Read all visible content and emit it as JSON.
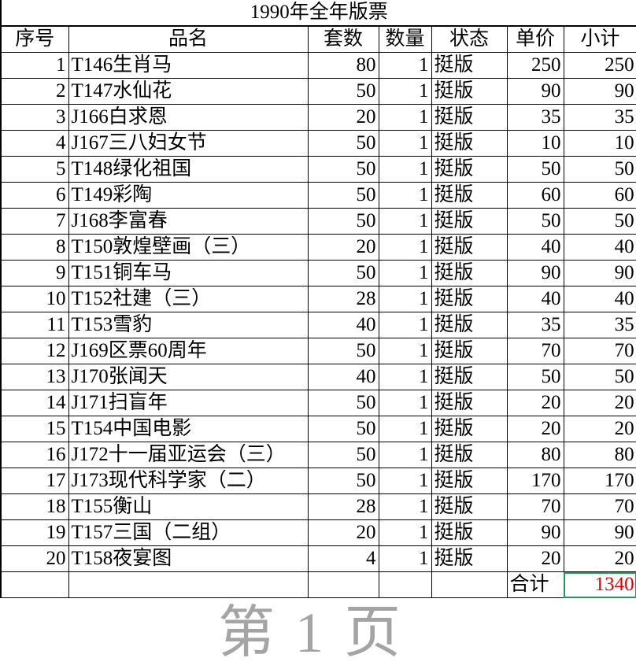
{
  "title": "1990年全年版票",
  "headers": [
    "序号",
    "品名",
    "套数",
    "数量",
    "状态",
    "单价",
    "小计"
  ],
  "rows": [
    [
      "1",
      "T146生肖马",
      "80",
      "1",
      "挺版",
      "250",
      "250"
    ],
    [
      "2",
      "T147水仙花",
      "50",
      "1",
      "挺版",
      "90",
      "90"
    ],
    [
      "3",
      "J166白求恩",
      "20",
      "1",
      "挺版",
      "35",
      "35"
    ],
    [
      "4",
      "J167三八妇女节",
      "50",
      "1",
      "挺版",
      "10",
      "10"
    ],
    [
      "5",
      "T148绿化祖国",
      "50",
      "1",
      "挺版",
      "50",
      "50"
    ],
    [
      "6",
      "T149彩陶",
      "50",
      "1",
      "挺版",
      "60",
      "60"
    ],
    [
      "7",
      "J168李富春",
      "50",
      "1",
      "挺版",
      "50",
      "50"
    ],
    [
      "8",
      "T150敦煌壁画（三）",
      "20",
      "1",
      "挺版",
      "40",
      "40"
    ],
    [
      "9",
      "T151铜车马",
      "50",
      "1",
      "挺版",
      "90",
      "90"
    ],
    [
      "10",
      "T152社建（三）",
      "28",
      "1",
      "挺版",
      "40",
      "40"
    ],
    [
      "11",
      "T153雪豹",
      "40",
      "1",
      "挺版",
      "35",
      "35"
    ],
    [
      "12",
      "J169区票60周年",
      "50",
      "1",
      "挺版",
      "70",
      "70"
    ],
    [
      "13",
      "J170张闻天",
      "40",
      "1",
      "挺版",
      "50",
      "50"
    ],
    [
      "14",
      "J171扫盲年",
      "50",
      "1",
      "挺版",
      "20",
      "20"
    ],
    [
      "15",
      "T154中国电影",
      "50",
      "1",
      "挺版",
      "20",
      "20"
    ],
    [
      "16",
      "J172十一届亚运会（三）",
      "50",
      "1",
      "挺版",
      "80",
      "80"
    ],
    [
      "17",
      "J173现代科学家（二）",
      "50",
      "1",
      "挺版",
      "170",
      "170"
    ],
    [
      "18",
      "T155衡山",
      "28",
      "1",
      "挺版",
      "70",
      "70"
    ],
    [
      "19",
      "T157三国（二组）",
      "20",
      "1",
      "挺版",
      "90",
      "90"
    ],
    [
      "20",
      "T158夜宴图",
      "4",
      "1",
      "挺版",
      "20",
      "20"
    ]
  ],
  "total": {
    "label": "合计",
    "value": "1340"
  },
  "watermark": "第 1 页",
  "colors": {
    "total_value": "#e00000",
    "selected_cell_border": "#1f9a5a"
  }
}
